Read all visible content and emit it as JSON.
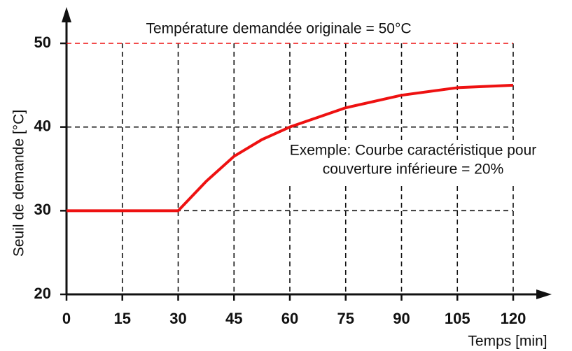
{
  "chart_data": {
    "type": "line",
    "title": "Température demandée originale = 50°C",
    "annotation": [
      "Exemple: Courbe caractéristique pour",
      "couverture inférieure = 20%"
    ],
    "xlabel": "Temps [min]",
    "ylabel": "Seuil  de demande [°C]",
    "x": [
      0,
      30,
      37.5,
      45,
      52.5,
      60,
      75,
      90,
      105,
      120
    ],
    "series": [
      {
        "color": "#ee1111",
        "values": [
          30,
          30,
          33.5,
          36.5,
          38.5,
          40,
          42.3,
          43.8,
          44.7,
          45
        ]
      }
    ],
    "xlim": [
      0,
      120
    ],
    "xticks": [
      0,
      15,
      30,
      45,
      60,
      75,
      90,
      105,
      120
    ],
    "ylim": [
      20,
      50
    ],
    "yticks": [
      20,
      30,
      40,
      50
    ],
    "reference_line": {
      "value": 50,
      "color": "#ee1111"
    },
    "grid": true
  }
}
